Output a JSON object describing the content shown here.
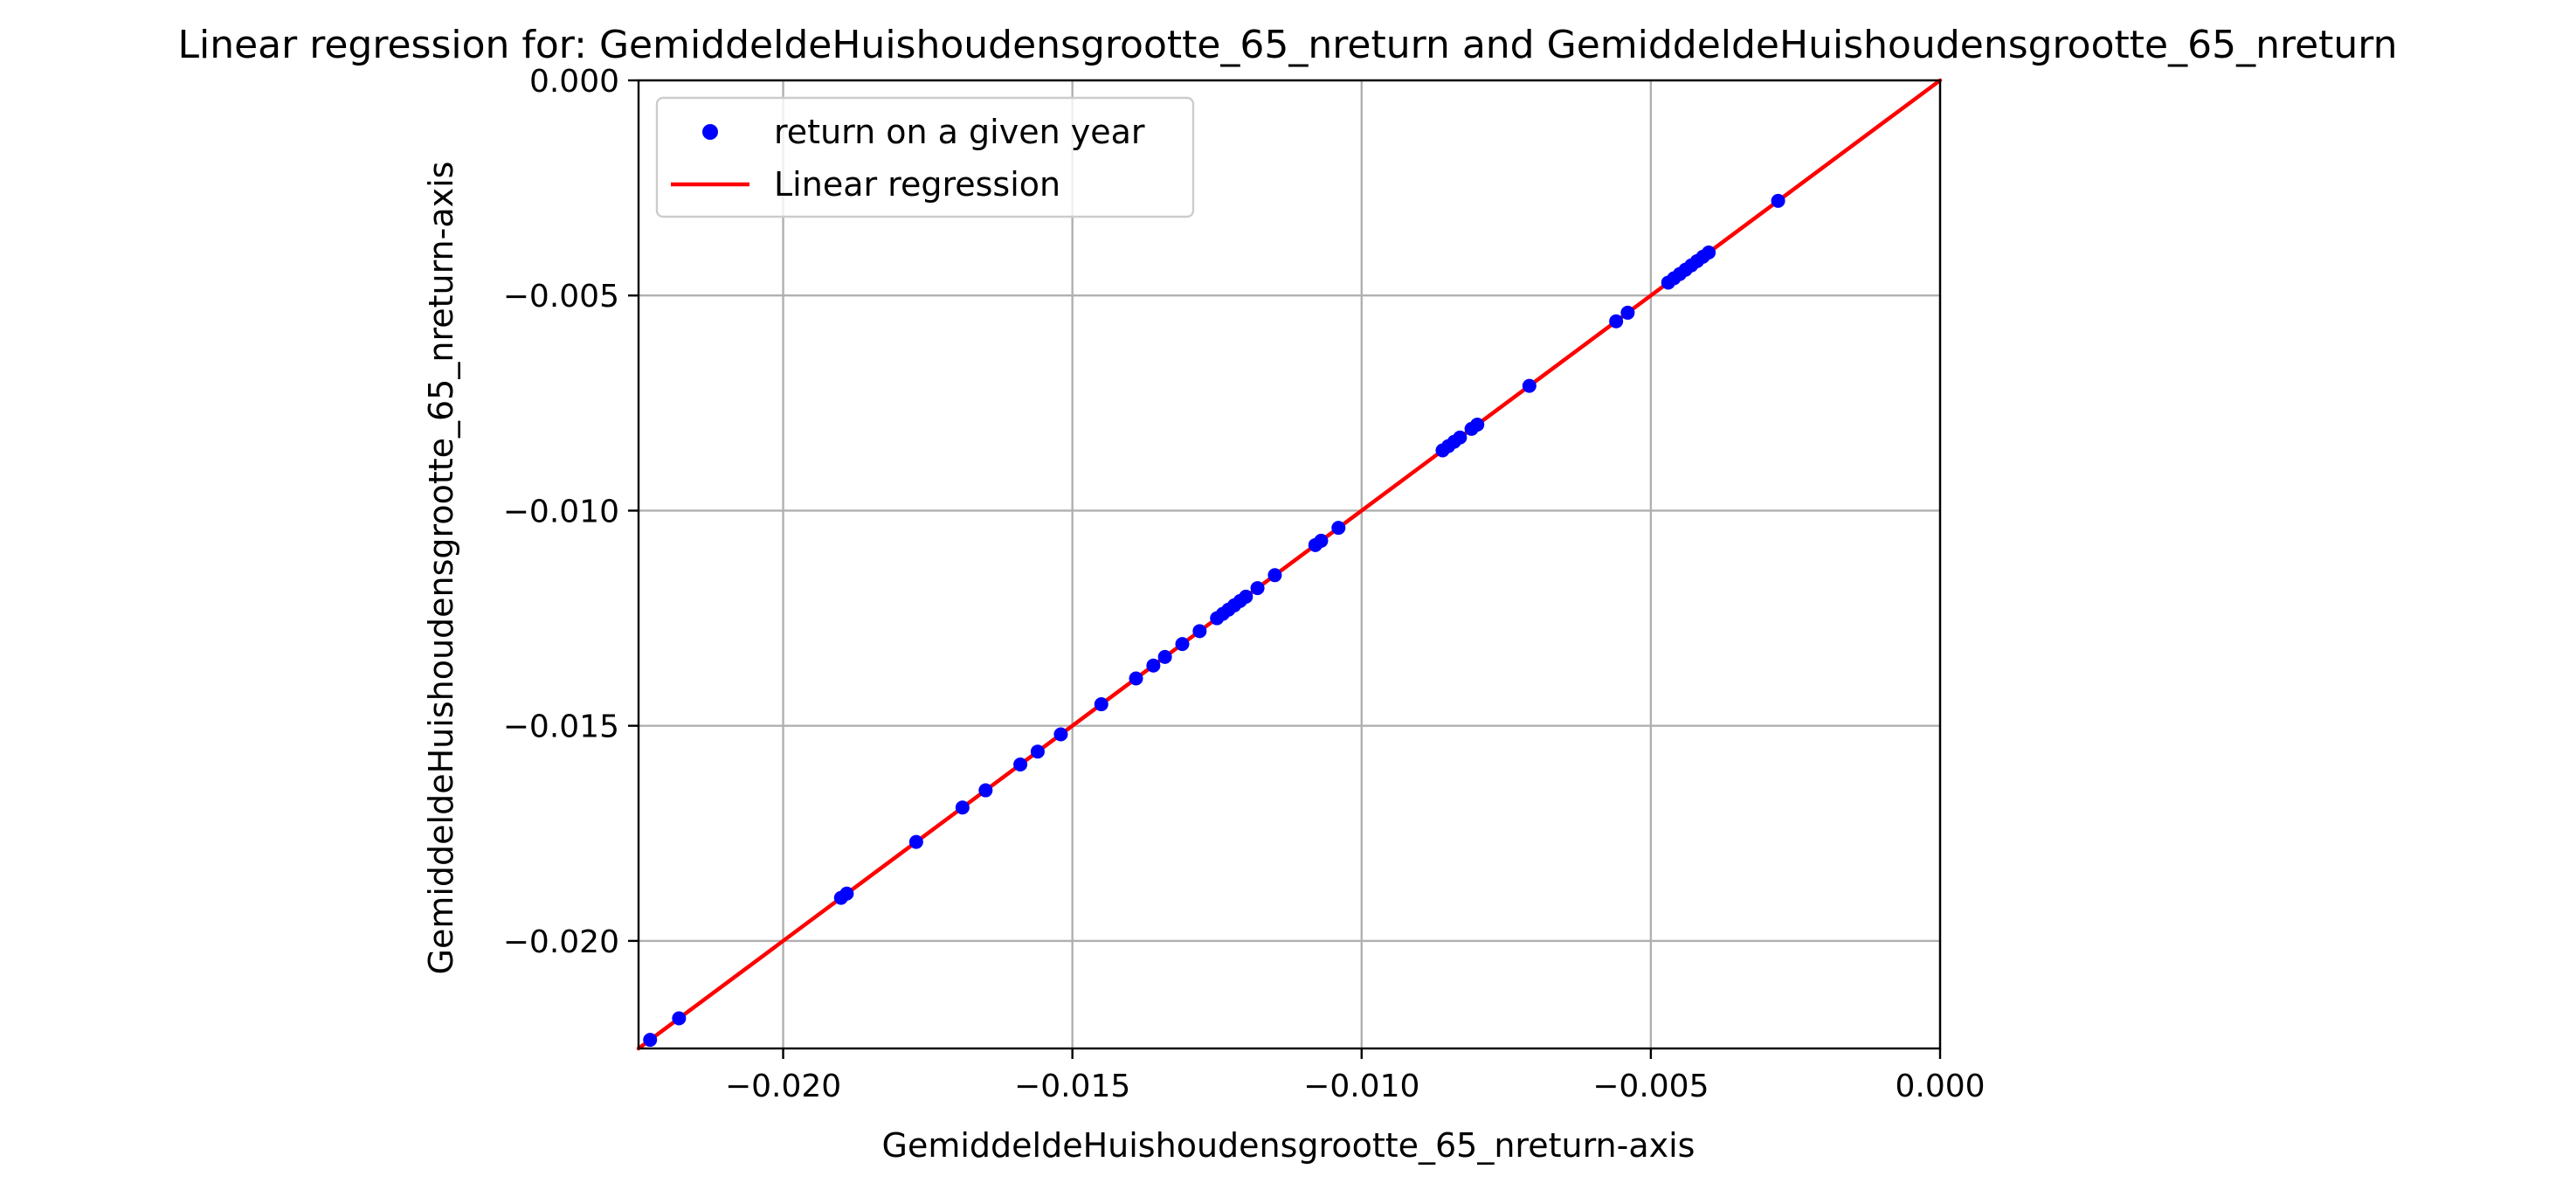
{
  "chart_data": {
    "type": "scatter",
    "title": "Linear regression for: GemiddeldeHuishoudensgrootte_65_nreturn and GemiddeldeHuishoudensgrootte_65_nreturn",
    "xlabel": "GemiddeldeHuishoudensgrootte_65_nreturn-axis",
    "ylabel": "GemiddeldeHuishoudensgrootte_65_nreturn-axis",
    "xlim": [
      -0.0225,
      0.0
    ],
    "ylim": [
      -0.0225,
      0.0
    ],
    "x_ticks": [
      -0.02,
      -0.015,
      -0.01,
      -0.005,
      0.0
    ],
    "x_tick_labels": [
      "−0.020",
      "−0.015",
      "−0.010",
      "−0.005",
      "0.000"
    ],
    "y_ticks": [
      0.0,
      -0.005,
      -0.01,
      -0.015,
      -0.02
    ],
    "y_tick_labels": [
      "0.000",
      "−0.005",
      "−0.010",
      "−0.015",
      "−0.020"
    ],
    "grid": true,
    "legend_position": "top-left",
    "series": [
      {
        "name": "return on a given year",
        "kind": "scatter",
        "color": "#0000ff",
        "x": [
          -0.0223,
          -0.0218,
          -0.019,
          -0.0189,
          -0.0177,
          -0.0169,
          -0.0165,
          -0.0159,
          -0.0156,
          -0.0152,
          -0.0145,
          -0.0139,
          -0.0136,
          -0.0134,
          -0.0131,
          -0.0128,
          -0.0125,
          -0.0124,
          -0.0123,
          -0.0122,
          -0.0121,
          -0.012,
          -0.0118,
          -0.0115,
          -0.0108,
          -0.0107,
          -0.0104,
          -0.0086,
          -0.0085,
          -0.0084,
          -0.0083,
          -0.0081,
          -0.008,
          -0.0071,
          -0.0056,
          -0.0054,
          -0.0047,
          -0.0046,
          -0.0045,
          -0.0044,
          -0.0043,
          -0.0042,
          -0.0041,
          -0.004,
          -0.0028
        ],
        "y": [
          -0.0223,
          -0.0218,
          -0.019,
          -0.0189,
          -0.0177,
          -0.0169,
          -0.0165,
          -0.0159,
          -0.0156,
          -0.0152,
          -0.0145,
          -0.0139,
          -0.0136,
          -0.0134,
          -0.0131,
          -0.0128,
          -0.0125,
          -0.0124,
          -0.0123,
          -0.0122,
          -0.0121,
          -0.012,
          -0.0118,
          -0.0115,
          -0.0108,
          -0.0107,
          -0.0104,
          -0.0086,
          -0.0085,
          -0.0084,
          -0.0083,
          -0.0081,
          -0.008,
          -0.0071,
          -0.0056,
          -0.0054,
          -0.0047,
          -0.0046,
          -0.0045,
          -0.0044,
          -0.0043,
          -0.0042,
          -0.0041,
          -0.004,
          -0.0028
        ]
      },
      {
        "name": "Linear regression",
        "kind": "line",
        "color": "#ff0000",
        "x": [
          -0.0225,
          0.0
        ],
        "y": [
          -0.0225,
          0.0
        ]
      }
    ]
  }
}
